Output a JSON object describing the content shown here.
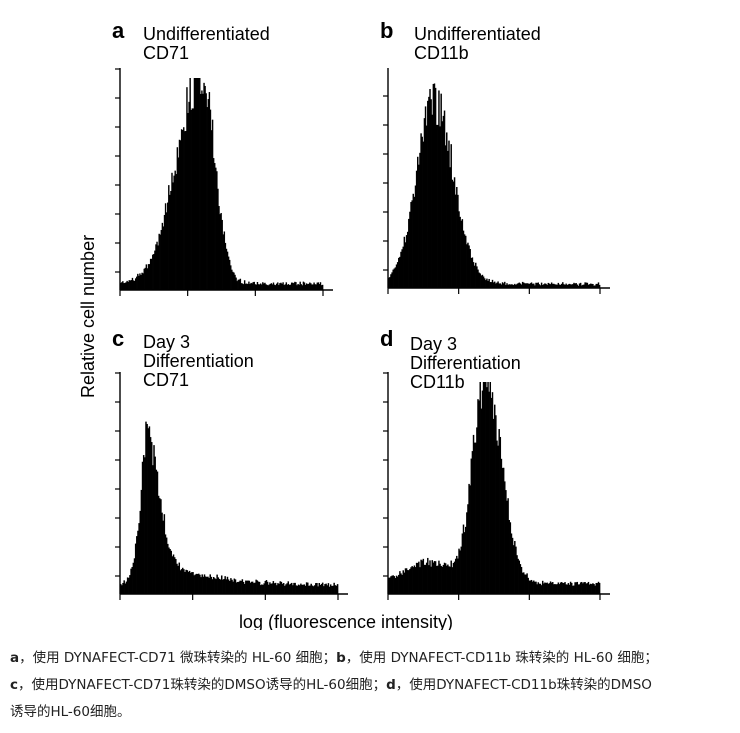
{
  "chart_data": [
    {
      "type": "histogram",
      "panel": "a",
      "title_lines": [
        "Undifferentiated",
        "CD71"
      ],
      "xlabel": "log (fluorescence intensity)",
      "ylabel": "Relative cell number",
      "xlim": [
        0,
        1
      ],
      "ylim": [
        0,
        1
      ],
      "peaks": [
        {
          "center": 0.4,
          "width_left": 0.12,
          "width_right": 0.065,
          "height": 1.0
        }
      ],
      "baseline": 0.03,
      "noise": 0.12
    },
    {
      "type": "histogram",
      "panel": "b",
      "title_lines": [
        "Undifferentiated",
        "CD11b"
      ],
      "xlabel": "log (fluorescence intensity)",
      "ylabel": "Relative cell number",
      "xlim": [
        0,
        1
      ],
      "ylim": [
        0,
        1
      ],
      "peaks": [
        {
          "center": 0.22,
          "width_left": 0.085,
          "width_right": 0.09,
          "height": 0.86
        }
      ],
      "baseline": 0.02,
      "noise": 0.12
    },
    {
      "type": "histogram",
      "panel": "c",
      "title_lines": [
        "Day 3",
        "Differentiation",
        "CD71"
      ],
      "xlabel": "log (fluorescence intensity)",
      "ylabel": "Relative cell number",
      "xlim": [
        0,
        1
      ],
      "ylim": [
        0,
        1
      ],
      "peaks": [
        {
          "center": 0.13,
          "width_left": 0.04,
          "width_right": 0.05,
          "height": 0.55
        }
      ],
      "tail": {
        "amplitude": 0.18,
        "decay": 0.22,
        "start": 0.1
      },
      "baseline": 0.04,
      "noise": 0.12
    },
    {
      "type": "histogram",
      "panel": "d",
      "title_lines": [
        "Day 3",
        "Differentiation",
        "CD11b"
      ],
      "xlabel": "log (fluorescence intensity)",
      "ylabel": "Relative cell number",
      "xlim": [
        0,
        1
      ],
      "ylim": [
        0,
        1
      ],
      "peaks": [
        {
          "center": 0.46,
          "width_left": 0.06,
          "width_right": 0.075,
          "height": 0.97
        },
        {
          "center": 0.2,
          "width_left": 0.12,
          "width_right": 0.1,
          "height": 0.1
        }
      ],
      "baseline": 0.05,
      "noise": 0.12
    }
  ],
  "figure": {
    "ylabel": "Relative cell number",
    "xlabel": "log (fluorescence intensity)"
  },
  "caption": {
    "line1": [
      {
        "text": "a",
        "bold": true
      },
      {
        "text": "，使用 DYNAFECT-CD71 微珠转染的 HL-60 细胞；",
        "bold": false
      },
      {
        "text": "b",
        "bold": true
      },
      {
        "text": "，使用 DYNAFECT-CD11b 珠转染的 HL-60 细胞；",
        "bold": false
      }
    ],
    "line2": [
      {
        "text": "c",
        "bold": true
      },
      {
        "text": "，使用DYNAFECT-CD71珠转染的DMSO诱导的HL-60细胞；",
        "bold": false
      },
      {
        "text": "d",
        "bold": true
      },
      {
        "text": "，使用DYNAFECT-CD11b珠转染的DMSO",
        "bold": false
      }
    ],
    "line3": [
      {
        "text": "诱导的HL-60细胞。",
        "bold": false
      }
    ]
  }
}
